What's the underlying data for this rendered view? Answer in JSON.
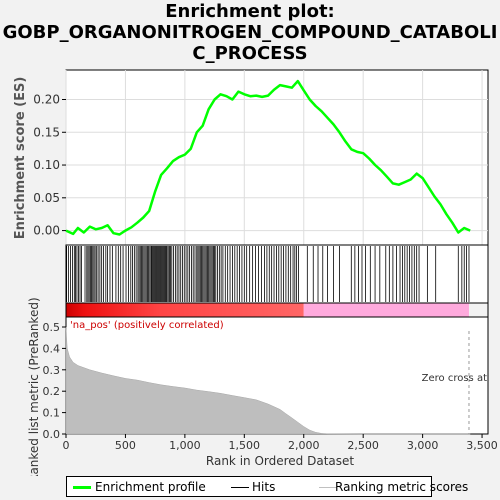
{
  "title": {
    "line1": "Enrichment plot:",
    "line2": "GOBP_ORGANONITROGEN_COMPOUND_CATABOLI",
    "line3": "C_PROCESS"
  },
  "legend": {
    "items": [
      {
        "label": "Enrichment profile",
        "color": "#00ff00"
      },
      {
        "label": "Hits",
        "color": "#000000"
      },
      {
        "label": "Ranking metric scores",
        "color": "#c0c0c0"
      }
    ]
  },
  "colors": {
    "es_line": "#00ff00",
    "hits": "#000000",
    "metric_fill": "#bebebe",
    "pos_band": "#ff0000",
    "neg_band": "#ff99dd",
    "pos_label": "#cc0000"
  },
  "chart_data": {
    "type": "line",
    "xlabel": "Rank in Ordered Dataset",
    "xlim": [
      0,
      3550
    ],
    "x_ticks": [
      0,
      500,
      1000,
      1500,
      2000,
      2500,
      3000,
      3500
    ],
    "x_tick_labels": [
      "0",
      "500",
      "1,000",
      "1,500",
      "2,000",
      "2,500",
      "3,000",
      "3,500"
    ],
    "es_panel": {
      "ylabel": "Enrichment score (ES)",
      "ylim": [
        -0.022,
        0.245
      ],
      "y_ticks": [
        0.0,
        0.05,
        0.1,
        0.15,
        0.2
      ],
      "y_tick_labels": [
        "0.00",
        "0.05",
        "0.10",
        "0.15",
        "0.20"
      ],
      "series": [
        {
          "name": "Enrichment profile",
          "x": [
            0,
            60,
            100,
            150,
            200,
            250,
            300,
            350,
            400,
            450,
            500,
            550,
            600,
            650,
            700,
            750,
            800,
            850,
            900,
            950,
            1000,
            1050,
            1100,
            1150,
            1200,
            1250,
            1300,
            1350,
            1400,
            1450,
            1500,
            1550,
            1600,
            1650,
            1700,
            1750,
            1800,
            1850,
            1900,
            1950,
            2000,
            2050,
            2100,
            2150,
            2200,
            2250,
            2300,
            2350,
            2400,
            2450,
            2500,
            2550,
            2600,
            2650,
            2700,
            2750,
            2800,
            2850,
            2900,
            2950,
            3000,
            3050,
            3100,
            3150,
            3200,
            3250,
            3300,
            3350,
            3400
          ],
          "y": [
            0.0,
            -0.005,
            0.004,
            -0.003,
            0.006,
            0.002,
            0.004,
            0.008,
            -0.004,
            -0.006,
            0.0,
            0.005,
            0.012,
            0.02,
            0.03,
            0.06,
            0.085,
            0.095,
            0.106,
            0.112,
            0.116,
            0.125,
            0.15,
            0.16,
            0.185,
            0.2,
            0.208,
            0.205,
            0.2,
            0.212,
            0.208,
            0.205,
            0.206,
            0.204,
            0.206,
            0.215,
            0.222,
            0.22,
            0.218,
            0.228,
            0.214,
            0.2,
            0.19,
            0.182,
            0.172,
            0.162,
            0.15,
            0.136,
            0.124,
            0.12,
            0.118,
            0.11,
            0.1,
            0.092,
            0.082,
            0.072,
            0.07,
            0.074,
            0.078,
            0.087,
            0.08,
            0.066,
            0.052,
            0.04,
            0.025,
            0.012,
            -0.003,
            0.004,
            0.0
          ]
        }
      ]
    },
    "hits_panel": {
      "name": "Hits",
      "positions": [
        5,
        20,
        38,
        55,
        70,
        80,
        92,
        105,
        118,
        130,
        160,
        175,
        185,
        195,
        205,
        215,
        225,
        235,
        245,
        258,
        270,
        285,
        300,
        315,
        335,
        350,
        370,
        390,
        420,
        440,
        460,
        480,
        505,
        525,
        545,
        560,
        575,
        590,
        605,
        615,
        625,
        635,
        645,
        655,
        665,
        675,
        685,
        695,
        705,
        715,
        722,
        730,
        738,
        746,
        754,
        762,
        770,
        778,
        786,
        794,
        802,
        810,
        818,
        826,
        834,
        842,
        850,
        860,
        870,
        880,
        890,
        905,
        920,
        935,
        950,
        965,
        980,
        995,
        1010,
        1025,
        1040,
        1055,
        1070,
        1085,
        1100,
        1110,
        1120,
        1130,
        1140,
        1150,
        1160,
        1170,
        1180,
        1190,
        1200,
        1210,
        1220,
        1230,
        1240,
        1250,
        1260,
        1275,
        1290,
        1305,
        1320,
        1340,
        1360,
        1380,
        1400,
        1420,
        1440,
        1460,
        1480,
        1500,
        1520,
        1545,
        1570,
        1595,
        1620,
        1645,
        1670,
        1690,
        1710,
        1730,
        1750,
        1770,
        1790,
        1810,
        1830,
        1850,
        1870,
        1890,
        1910,
        1925,
        1940,
        1955,
        2030,
        2080,
        2120,
        2160,
        2200,
        2250,
        2300,
        2400,
        2430,
        2460,
        2490,
        2520,
        2560,
        2600,
        2640,
        2690,
        2720,
        2750,
        2780,
        2810,
        2830,
        2850,
        2870,
        2890,
        2910,
        2930,
        2950,
        2970,
        3040,
        3110,
        3300,
        3330,
        3350,
        3370,
        3390
      ]
    },
    "metric_panel": {
      "name": "Ranking metric scores",
      "ylabel": "Ranked list metric (PreRanked)",
      "ylim": [
        0,
        0.5
      ],
      "y_ticks": [
        0.0,
        0.1,
        0.2,
        0.3,
        0.4,
        0.5
      ],
      "y_tick_labels": [
        "0.0",
        "0.1",
        "0.2",
        "0.3",
        "0.4",
        "0.5"
      ],
      "x": [
        0,
        10,
        30,
        60,
        100,
        200,
        300,
        400,
        500,
        600,
        700,
        800,
        900,
        1000,
        1100,
        1200,
        1300,
        1400,
        1500,
        1600,
        1700,
        1800,
        1850,
        1900,
        1950,
        2000,
        2050,
        2100,
        2150,
        2200,
        2500,
        3000,
        3400
      ],
      "y": [
        0.5,
        0.4,
        0.36,
        0.335,
        0.32,
        0.3,
        0.285,
        0.272,
        0.26,
        0.252,
        0.24,
        0.23,
        0.222,
        0.215,
        0.205,
        0.198,
        0.19,
        0.18,
        0.17,
        0.16,
        0.14,
        0.115,
        0.095,
        0.075,
        0.055,
        0.035,
        0.018,
        0.008,
        0.003,
        0.001,
        0.0,
        0.0,
        0.0
      ],
      "zero_cross": 3390
    },
    "pos_label": "'na_pos' (positively correlated)",
    "zero_cross_label": "Zero cross at"
  }
}
